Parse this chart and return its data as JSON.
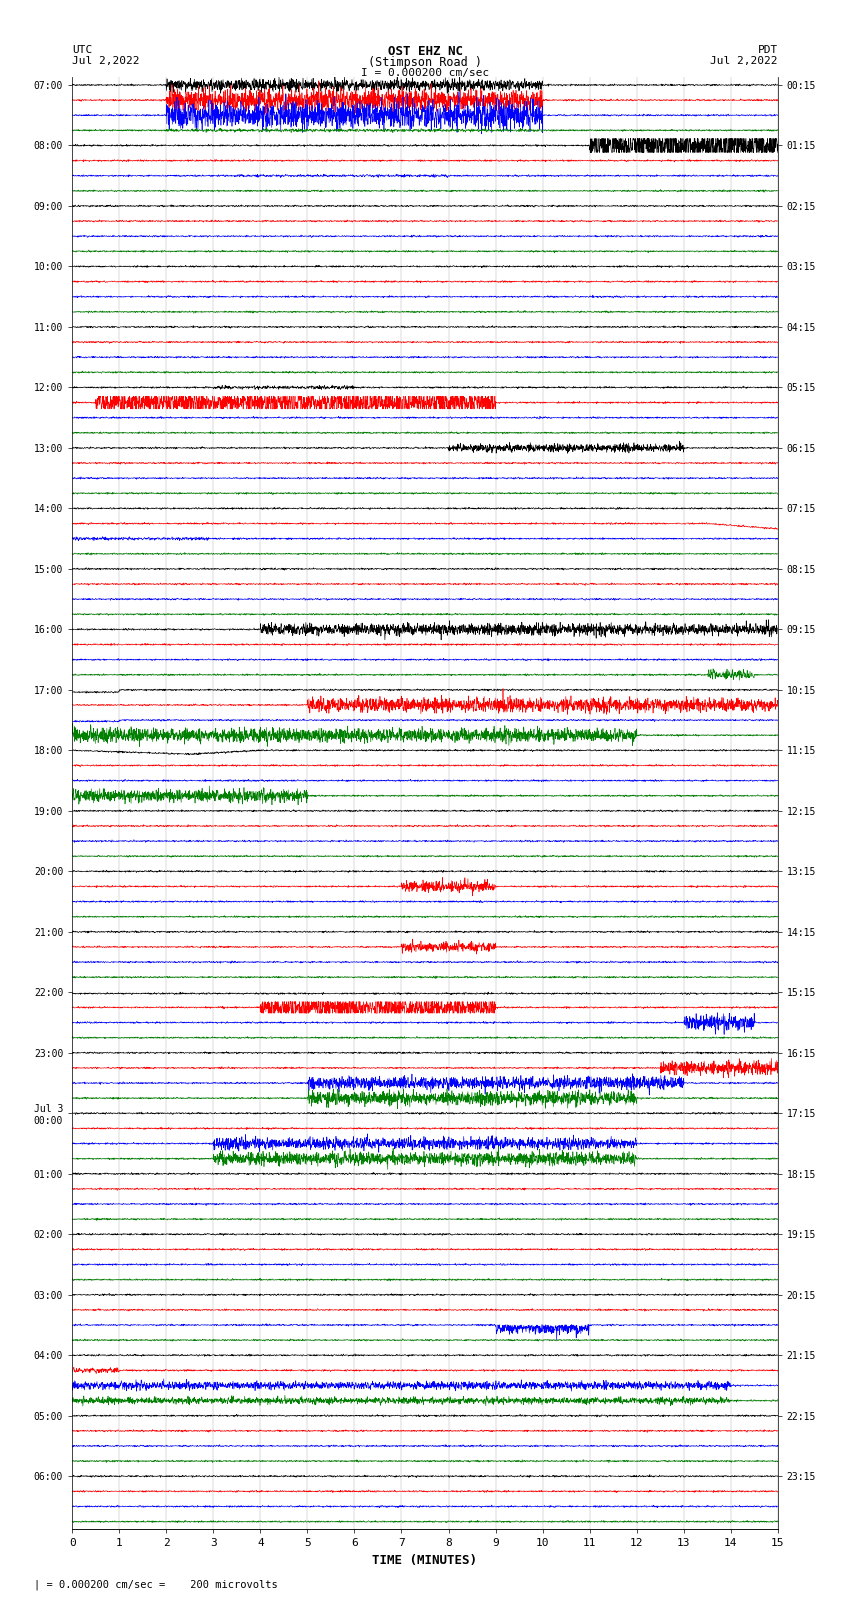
{
  "title_line1": "OST EHZ NC",
  "title_line2": "(Stimpson Road )",
  "title_scale": "I = 0.000200 cm/sec",
  "label_left_top": "UTC",
  "label_left_date": "Jul 2,2022",
  "label_right_top": "PDT",
  "label_right_date": "Jul 2,2022",
  "xlabel": "TIME (MINUTES)",
  "footer": "= 0.000200 cm/sec =    200 microvolts",
  "utc_labels": [
    "07:00",
    "08:00",
    "09:00",
    "10:00",
    "11:00",
    "12:00",
    "13:00",
    "14:00",
    "15:00",
    "16:00",
    "17:00",
    "18:00",
    "19:00",
    "20:00",
    "21:00",
    "22:00",
    "23:00",
    "Jul 3\n00:00",
    "01:00",
    "02:00",
    "03:00",
    "04:00",
    "05:00",
    "06:00"
  ],
  "pdt_labels": [
    "00:15",
    "01:15",
    "02:15",
    "03:15",
    "04:15",
    "05:15",
    "06:15",
    "07:15",
    "08:15",
    "09:15",
    "10:15",
    "11:15",
    "12:15",
    "13:15",
    "14:15",
    "15:15",
    "16:15",
    "17:15",
    "18:15",
    "19:15",
    "20:15",
    "21:15",
    "22:15",
    "23:15"
  ],
  "bg_color": "#ffffff",
  "colors_cycle": [
    "black",
    "red",
    "blue",
    "green"
  ],
  "n_hours": 24,
  "traces_per_hour": 4,
  "x_min": 0,
  "x_max": 15,
  "x_ticks": [
    0,
    1,
    2,
    3,
    4,
    5,
    6,
    7,
    8,
    9,
    10,
    11,
    12,
    13,
    14,
    15
  ]
}
